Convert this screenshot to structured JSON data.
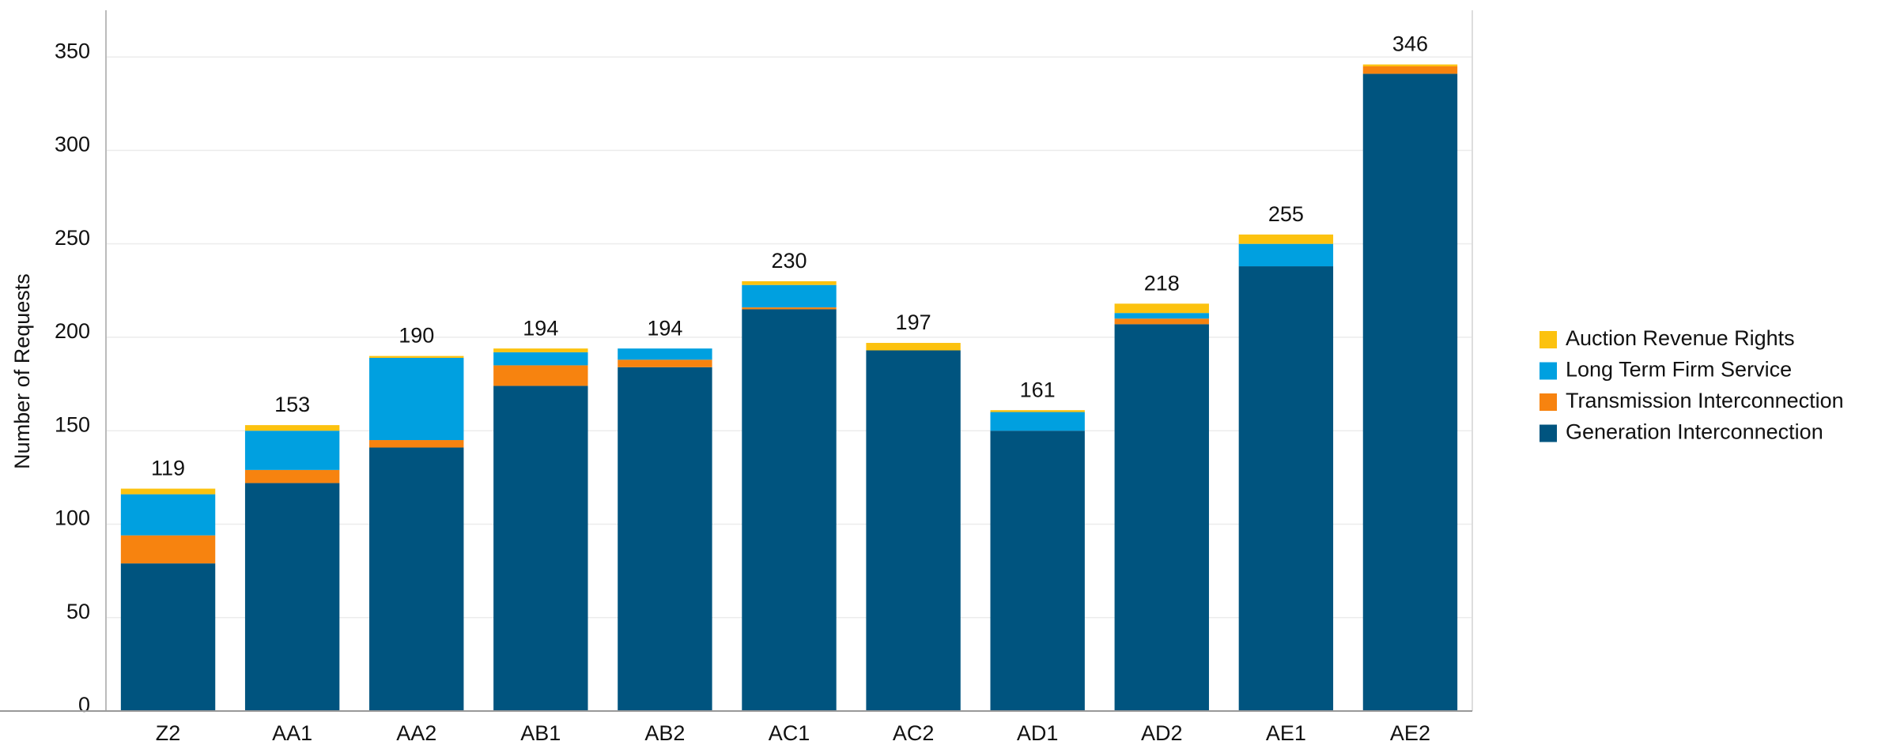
{
  "chart_data": {
    "type": "stacked_bar",
    "y_label": "Number of Requests",
    "categories": [
      "Z2",
      "AA1",
      "AA2",
      "AB1",
      "AB2",
      "AC1",
      "AC2",
      "AD1",
      "AD2",
      "AE1",
      "AE2"
    ],
    "series": [
      {
        "name": "Generation Interconnection",
        "color": "#00547f",
        "values": [
          79,
          122,
          141,
          174,
          184,
          215,
          193,
          150,
          207,
          238,
          341
        ]
      },
      {
        "name": "Transmission Interconnection",
        "color": "#f7830f",
        "values": [
          15,
          7,
          4,
          11,
          4,
          1,
          0,
          0,
          3,
          0,
          4
        ]
      },
      {
        "name": "Long Term Firm Service",
        "color": "#00a0e0",
        "values": [
          22,
          21,
          44,
          7,
          6,
          12,
          0,
          10,
          3,
          12,
          0
        ]
      },
      {
        "name": "Auction Revenue Rights",
        "color": "#fcc20f",
        "values": [
          3,
          3,
          1,
          2,
          0,
          2,
          4,
          1,
          5,
          5,
          1
        ]
      }
    ],
    "totals": [
      119,
      153,
      190,
      194,
      194,
      230,
      197,
      161,
      218,
      255,
      346
    ],
    "ylim": [
      0,
      375
    ],
    "yticks": [
      0,
      50,
      100,
      150,
      200,
      250,
      300,
      350
    ],
    "grid": true,
    "legend": "right"
  }
}
